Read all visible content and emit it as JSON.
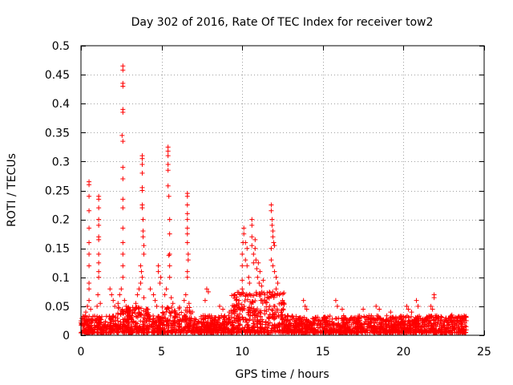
{
  "chart_data": {
    "type": "scatter",
    "title": "Day 302 of 2016, Rate Of TEC Index for receiver tow2",
    "xlabel": "GPS time / hours",
    "ylabel": "ROTI / TECUs",
    "xlim": [
      0,
      25
    ],
    "ylim": [
      0,
      0.5
    ],
    "x_ticks": [
      0,
      5,
      10,
      15,
      20,
      25
    ],
    "y_ticks": [
      0,
      0.05,
      0.1,
      0.15,
      0.2,
      0.25,
      0.3,
      0.35,
      0.4,
      0.45,
      0.5
    ],
    "grid": true,
    "marker": "+",
    "color": "#ff0000",
    "baseline_noise": {
      "x_range": [
        0,
        23.9
      ],
      "typical_max": 0.03
    },
    "series": [
      {
        "name": "ROTI",
        "points": [
          [
            0.5,
            0.265
          ],
          [
            0.5,
            0.26
          ],
          [
            0.5,
            0.24
          ],
          [
            0.5,
            0.215
          ],
          [
            0.5,
            0.185
          ],
          [
            0.5,
            0.16
          ],
          [
            0.5,
            0.14
          ],
          [
            0.5,
            0.12
          ],
          [
            0.5,
            0.09
          ],
          [
            0.5,
            0.08
          ],
          [
            0.5,
            0.06
          ],
          [
            0.4,
            0.05
          ],
          [
            0.3,
            0.04
          ],
          [
            0.6,
            0.045
          ],
          [
            1.1,
            0.24
          ],
          [
            1.1,
            0.235
          ],
          [
            1.1,
            0.22
          ],
          [
            1.1,
            0.2
          ],
          [
            1.1,
            0.19
          ],
          [
            1.1,
            0.17
          ],
          [
            1.1,
            0.165
          ],
          [
            1.1,
            0.14
          ],
          [
            1.1,
            0.125
          ],
          [
            1.1,
            0.11
          ],
          [
            1.1,
            0.1
          ],
          [
            1.05,
            0.07
          ],
          [
            1.2,
            0.055
          ],
          [
            1.0,
            0.05
          ],
          [
            1.8,
            0.08
          ],
          [
            1.9,
            0.07
          ],
          [
            2.0,
            0.06
          ],
          [
            2.1,
            0.05
          ],
          [
            2.6,
            0.465
          ],
          [
            2.6,
            0.458
          ],
          [
            2.6,
            0.435
          ],
          [
            2.6,
            0.43
          ],
          [
            2.6,
            0.39
          ],
          [
            2.6,
            0.385
          ],
          [
            2.55,
            0.345
          ],
          [
            2.6,
            0.335
          ],
          [
            2.6,
            0.29
          ],
          [
            2.6,
            0.27
          ],
          [
            2.6,
            0.235
          ],
          [
            2.6,
            0.22
          ],
          [
            2.6,
            0.185
          ],
          [
            2.6,
            0.16
          ],
          [
            2.6,
            0.14
          ],
          [
            2.6,
            0.12
          ],
          [
            2.6,
            0.1
          ],
          [
            2.5,
            0.08
          ],
          [
            2.4,
            0.07
          ],
          [
            2.7,
            0.06
          ],
          [
            2.3,
            0.055
          ],
          [
            2.8,
            0.05
          ],
          [
            3.8,
            0.31
          ],
          [
            3.8,
            0.305
          ],
          [
            3.8,
            0.295
          ],
          [
            3.8,
            0.28
          ],
          [
            3.8,
            0.255
          ],
          [
            3.8,
            0.25
          ],
          [
            3.8,
            0.225
          ],
          [
            3.8,
            0.22
          ],
          [
            3.85,
            0.2
          ],
          [
            3.85,
            0.18
          ],
          [
            3.85,
            0.17
          ],
          [
            3.9,
            0.155
          ],
          [
            3.9,
            0.14
          ],
          [
            3.7,
            0.12
          ],
          [
            3.75,
            0.11
          ],
          [
            3.8,
            0.1
          ],
          [
            3.7,
            0.09
          ],
          [
            3.6,
            0.08
          ],
          [
            3.5,
            0.07
          ],
          [
            3.9,
            0.065
          ],
          [
            3.4,
            0.055
          ],
          [
            4.3,
            0.08
          ],
          [
            4.5,
            0.07
          ],
          [
            4.6,
            0.06
          ],
          [
            4.7,
            0.05
          ],
          [
            4.8,
            0.12
          ],
          [
            4.8,
            0.11
          ],
          [
            4.9,
            0.09
          ],
          [
            4.95,
            0.1
          ],
          [
            5.4,
            0.325
          ],
          [
            5.4,
            0.318
          ],
          [
            5.4,
            0.31
          ],
          [
            5.4,
            0.295
          ],
          [
            5.4,
            0.285
          ],
          [
            5.4,
            0.258
          ],
          [
            5.45,
            0.24
          ],
          [
            5.5,
            0.2
          ],
          [
            5.5,
            0.175
          ],
          [
            5.5,
            0.14
          ],
          [
            5.45,
            0.138
          ],
          [
            5.5,
            0.12
          ],
          [
            5.5,
            0.1
          ],
          [
            5.3,
            0.08
          ],
          [
            5.2,
            0.07
          ],
          [
            5.6,
            0.065
          ],
          [
            5.7,
            0.055
          ],
          [
            6.6,
            0.245
          ],
          [
            6.6,
            0.24
          ],
          [
            6.6,
            0.225
          ],
          [
            6.6,
            0.21
          ],
          [
            6.6,
            0.2
          ],
          [
            6.6,
            0.185
          ],
          [
            6.6,
            0.175
          ],
          [
            6.6,
            0.16
          ],
          [
            6.65,
            0.14
          ],
          [
            6.65,
            0.13
          ],
          [
            6.6,
            0.11
          ],
          [
            6.6,
            0.1
          ],
          [
            6.5,
            0.07
          ],
          [
            6.4,
            0.06
          ],
          [
            6.7,
            0.055
          ],
          [
            7.8,
            0.08
          ],
          [
            7.9,
            0.075
          ],
          [
            7.7,
            0.06
          ],
          [
            8.6,
            0.05
          ],
          [
            8.8,
            0.045
          ],
          [
            9.2,
            0.04
          ],
          [
            9.5,
            0.05
          ],
          [
            9.8,
            0.06
          ],
          [
            9.9,
            0.07
          ],
          [
            10.0,
            0.08
          ],
          [
            10.0,
            0.095
          ],
          [
            10.0,
            0.12
          ],
          [
            10.0,
            0.14
          ],
          [
            10.05,
            0.16
          ],
          [
            10.1,
            0.175
          ],
          [
            10.1,
            0.185
          ],
          [
            10.2,
            0.16
          ],
          [
            10.2,
            0.13
          ],
          [
            10.3,
            0.15
          ],
          [
            10.3,
            0.12
          ],
          [
            10.4,
            0.1
          ],
          [
            10.45,
            0.09
          ],
          [
            10.6,
            0.2
          ],
          [
            10.6,
            0.19
          ],
          [
            10.6,
            0.17
          ],
          [
            10.6,
            0.155
          ],
          [
            10.7,
            0.14
          ],
          [
            10.7,
            0.125
          ],
          [
            10.8,
            0.165
          ],
          [
            10.8,
            0.15
          ],
          [
            10.85,
            0.13
          ],
          [
            10.9,
            0.115
          ],
          [
            10.95,
            0.1
          ],
          [
            11.0,
            0.125
          ],
          [
            11.05,
            0.09
          ],
          [
            11.1,
            0.11
          ],
          [
            11.2,
            0.085
          ],
          [
            11.3,
            0.095
          ],
          [
            11.4,
            0.07
          ],
          [
            11.8,
            0.225
          ],
          [
            11.8,
            0.215
          ],
          [
            11.85,
            0.2
          ],
          [
            11.85,
            0.19
          ],
          [
            11.9,
            0.18
          ],
          [
            11.9,
            0.17
          ],
          [
            11.95,
            0.16
          ],
          [
            12.0,
            0.155
          ],
          [
            11.8,
            0.15
          ],
          [
            11.8,
            0.13
          ],
          [
            11.9,
            0.12
          ],
          [
            12.0,
            0.11
          ],
          [
            12.1,
            0.1
          ],
          [
            12.2,
            0.09
          ],
          [
            12.1,
            0.08
          ],
          [
            12.3,
            0.07
          ],
          [
            12.5,
            0.06
          ],
          [
            12.6,
            0.055
          ],
          [
            13.8,
            0.06
          ],
          [
            13.9,
            0.05
          ],
          [
            14.0,
            0.045
          ],
          [
            15.8,
            0.06
          ],
          [
            15.9,
            0.05
          ],
          [
            16.2,
            0.045
          ],
          [
            17.5,
            0.045
          ],
          [
            18.3,
            0.05
          ],
          [
            18.5,
            0.045
          ],
          [
            19.2,
            0.04
          ],
          [
            20.2,
            0.05
          ],
          [
            20.3,
            0.045
          ],
          [
            20.5,
            0.04
          ],
          [
            20.8,
            0.06
          ],
          [
            20.9,
            0.05
          ],
          [
            21.9,
            0.07
          ],
          [
            21.9,
            0.065
          ],
          [
            21.7,
            0.05
          ],
          [
            21.8,
            0.045
          ],
          [
            23.0,
            0.035
          ],
          [
            23.3,
            0.03
          ],
          [
            23.5,
            0.03
          ]
        ]
      }
    ]
  }
}
